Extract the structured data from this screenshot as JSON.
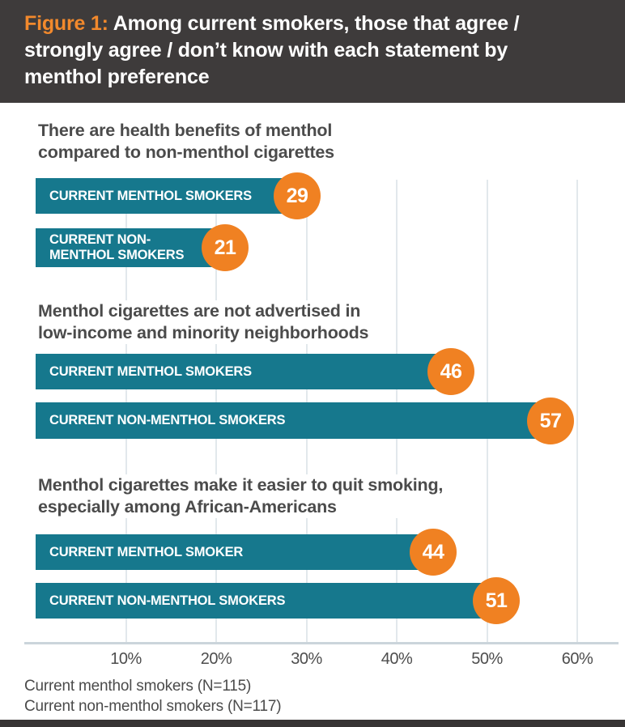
{
  "header": {
    "figure_label": "Figure 1:",
    "title": "Among current smokers, those that agree / strongly agree / don’t know with each statement by menthol preference"
  },
  "chart_data": {
    "type": "bar",
    "orientation": "horizontal",
    "unit": "percent",
    "xlim": [
      0,
      60
    ],
    "grid": true,
    "legend_position": "none",
    "x_ticks": [
      "10%",
      "20%",
      "30%",
      "40%",
      "50%",
      "60%"
    ],
    "x_tick_values": [
      10,
      20,
      30,
      40,
      50,
      60
    ],
    "groups": [
      {
        "statement": "There are health benefits of menthol compared to non-menthol cigarettes",
        "statement_lines": [
          "There are health benefits of menthol",
          "compared to non-menthol cigarettes"
        ],
        "bars": [
          {
            "label": "CURRENT MENTHOL SMOKERS",
            "label_lines": [
              "CURRENT MENTHOL SMOKERS"
            ],
            "value": 29
          },
          {
            "label": "CURRENT NON-MENTHOL SMOKERS",
            "label_lines": [
              "CURRENT NON-",
              "MENTHOL SMOKERS"
            ],
            "value": 21
          }
        ]
      },
      {
        "statement": "Menthol cigarettes are not advertised in low-income and minority neighborhoods",
        "statement_lines": [
          "Menthol cigarettes are not advertised in",
          "low-income and minority neighborhoods"
        ],
        "bars": [
          {
            "label": "CURRENT MENTHOL SMOKERS",
            "label_lines": [
              "CURRENT MENTHOL SMOKERS"
            ],
            "value": 46
          },
          {
            "label": "CURRENT NON-MENTHOL SMOKERS",
            "label_lines": [
              "CURRENT NON-MENTHOL SMOKERS"
            ],
            "value": 57
          }
        ]
      },
      {
        "statement": "Menthol cigarettes make it easier to quit smoking, especially among African-Americans",
        "statement_lines": [
          "Menthol cigarettes make it easier to quit smoking,",
          "especially among African-Americans"
        ],
        "bars": [
          {
            "label": "CURRENT MENTHOL SMOKER",
            "label_lines": [
              "CURRENT MENTHOL SMOKER"
            ],
            "value": 44
          },
          {
            "label": "CURRENT NON-MENTHOL SMOKERS",
            "label_lines": [
              "CURRENT NON-MENTHOL SMOKERS"
            ],
            "value": 51
          }
        ]
      }
    ],
    "footnotes": [
      "Current menthol smokers (N=115)",
      "Current non-menthol smokers (N=117)"
    ],
    "colors": {
      "bar": "#16788D",
      "value_badge": "#F08122",
      "header_bg": "#3E3B3B",
      "figure_label": "#F2892C",
      "header_text": "#FFFFFF",
      "statement_text": "#4B4B4B",
      "gridline": "#E2E8EC",
      "axis_line": "#CBD5DB",
      "tick_text": "#4D4D4D",
      "bottom_strip": "#373434"
    }
  }
}
